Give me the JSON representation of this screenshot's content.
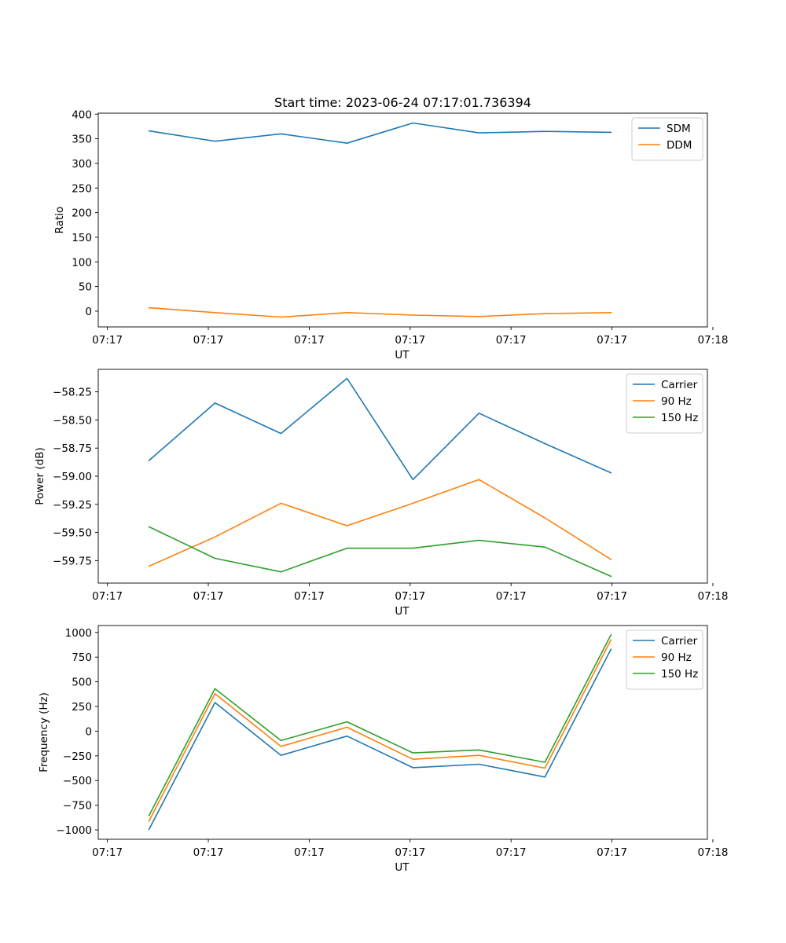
{
  "colors": {
    "blue": "#1f77b4",
    "orange": "#ff7f0e",
    "green": "#2ca02c"
  },
  "chart_data": [
    {
      "type": "line",
      "title": "Start time: 2023-06-24 07:17:01.736394",
      "xlabel": "UT",
      "ylabel": "Ratio",
      "x_ticks": [
        "07:17",
        "07:17",
        "07:17",
        "07:17",
        "07:17",
        "07:17",
        "07:18"
      ],
      "x_range": [
        0,
        12
      ],
      "x": [
        1,
        2.3,
        3.6,
        4.9,
        6.2,
        7.5,
        8.8,
        10.1
      ],
      "ylim": [
        -32,
        402
      ],
      "y_ticks": [
        0,
        50,
        100,
        150,
        200,
        250,
        300,
        350,
        400
      ],
      "grid": false,
      "legend_position": "top-right",
      "series": [
        {
          "name": "SDM",
          "color": "#1f77b4",
          "values": [
            366,
            345,
            360,
            341,
            382,
            362,
            365,
            363
          ]
        },
        {
          "name": "DDM",
          "color": "#ff7f0e",
          "values": [
            7,
            -3,
            -12,
            -3,
            -8,
            -11,
            -5,
            -3
          ]
        }
      ]
    },
    {
      "type": "line",
      "title": "",
      "xlabel": "UT",
      "ylabel": "Power (dB)",
      "x_ticks": [
        "07:17",
        "07:17",
        "07:17",
        "07:17",
        "07:17",
        "07:17",
        "07:18"
      ],
      "x_range": [
        0,
        12
      ],
      "x": [
        1,
        2.3,
        3.6,
        4.9,
        6.2,
        7.5,
        8.8,
        10.1
      ],
      "ylim": [
        -59.95,
        -58.05
      ],
      "y_ticks": [
        -59.75,
        -59.5,
        -59.25,
        -59.0,
        -58.75,
        -58.5,
        -58.25
      ],
      "y_tick_labels": [
        "−59.75",
        "−59.50",
        "−59.25",
        "−59.00",
        "−58.75",
        "−58.50",
        "−58.25"
      ],
      "grid": false,
      "legend_position": "top-right",
      "series": [
        {
          "name": "Carrier",
          "color": "#1f77b4",
          "values": [
            -58.86,
            -58.35,
            -58.62,
            -58.13,
            -59.03,
            -58.44,
            -58.71,
            -58.97
          ]
        },
        {
          "name": "90 Hz",
          "color": "#ff7f0e",
          "values": [
            -59.8,
            -59.54,
            -59.24,
            -59.44,
            -59.24,
            -59.03,
            -59.37,
            -59.74
          ]
        },
        {
          "name": "150 Hz",
          "color": "#2ca02c",
          "values": [
            -59.45,
            -59.73,
            -59.85,
            -59.64,
            -59.64,
            -59.57,
            -59.63,
            -59.89
          ]
        }
      ]
    },
    {
      "type": "line",
      "title": "",
      "xlabel": "UT",
      "ylabel": "Frequency (Hz)",
      "x_ticks": [
        "07:17",
        "07:17",
        "07:17",
        "07:17",
        "07:17",
        "07:17",
        "07:18"
      ],
      "x_range": [
        0,
        12
      ],
      "x": [
        1,
        2.3,
        3.6,
        4.9,
        6.2,
        7.5,
        8.8,
        10.1
      ],
      "ylim": [
        -1095,
        1070
      ],
      "y_ticks": [
        -1000,
        -750,
        -500,
        -250,
        0,
        250,
        500,
        750,
        1000
      ],
      "y_tick_labels": [
        "−1000",
        "−750",
        "−500",
        "−250",
        "0",
        "250",
        "500",
        "750",
        "1000"
      ],
      "grid": false,
      "legend_position": "top-right",
      "series": [
        {
          "name": "Carrier",
          "color": "#1f77b4",
          "values": [
            -995,
            290,
            -245,
            -50,
            -370,
            -335,
            -465,
            830
          ]
        },
        {
          "name": "90 Hz",
          "color": "#ff7f0e",
          "values": [
            -910,
            380,
            -155,
            40,
            -285,
            -245,
            -375,
            925
          ]
        },
        {
          "name": "150 Hz",
          "color": "#2ca02c",
          "values": [
            -855,
            430,
            -95,
            95,
            -220,
            -190,
            -315,
            975
          ]
        }
      ]
    }
  ]
}
